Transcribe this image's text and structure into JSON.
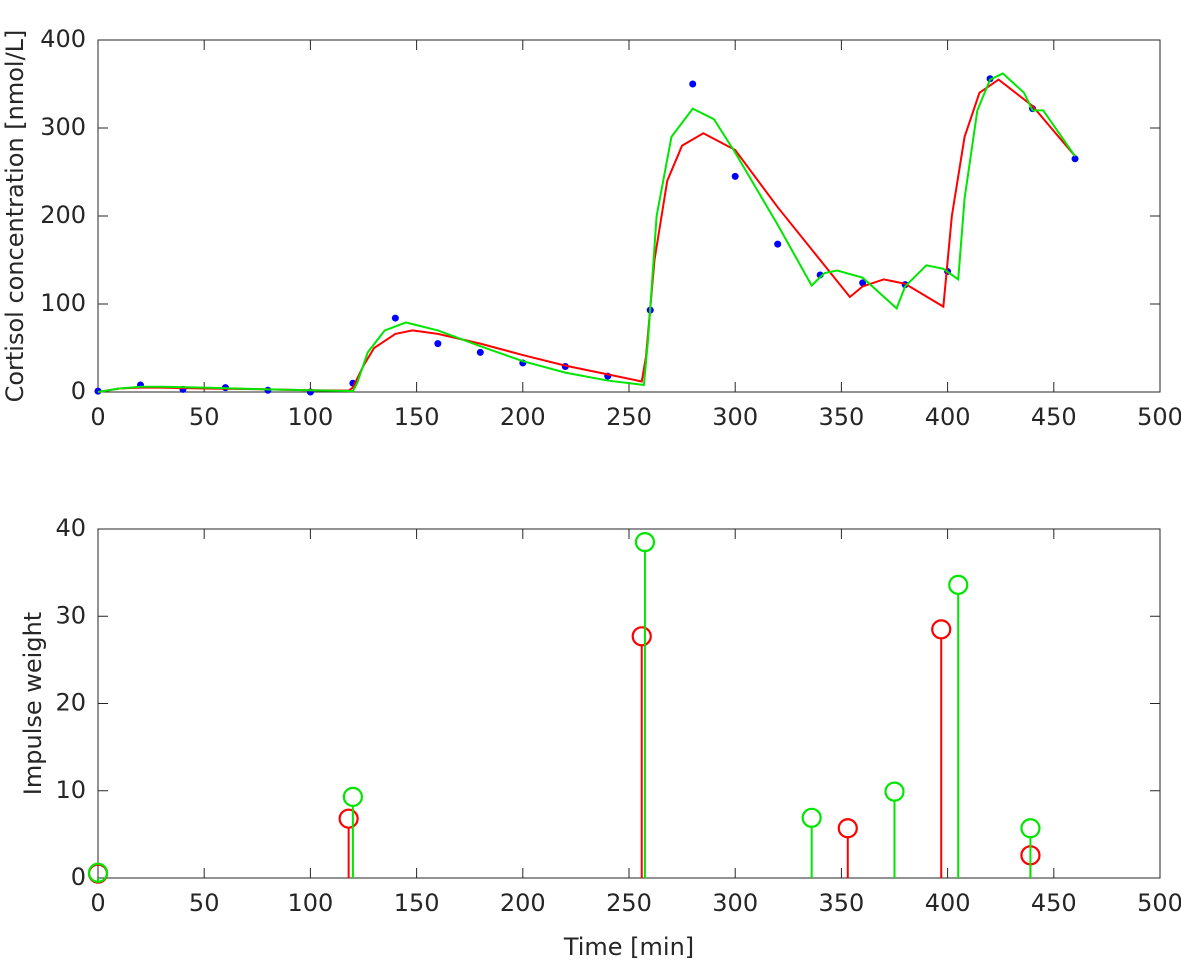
{
  "chart_data": [
    {
      "type": "line",
      "ylabel": "Cortisol concentration [nmol/L]",
      "xlim": [
        0,
        500
      ],
      "xticks": [
        0,
        50,
        100,
        150,
        200,
        250,
        300,
        350,
        400,
        450,
        500
      ],
      "ylim": [
        0,
        400
      ],
      "yticks": [
        0,
        100,
        200,
        300,
        400
      ],
      "box": true,
      "series": [
        {
          "style": "markers",
          "color": "#0000ff",
          "x": [
            0,
            20,
            40,
            60,
            80,
            100,
            120,
            140,
            160,
            180,
            200,
            220,
            240,
            260,
            280,
            300,
            320,
            340,
            360,
            380,
            400,
            420,
            440,
            460
          ],
          "values": [
            1,
            8,
            3,
            5,
            2,
            0,
            10,
            84,
            55,
            45,
            33,
            29,
            18,
            93,
            350,
            245,
            168,
            133,
            124,
            122,
            137,
            356,
            322,
            265
          ]
        },
        {
          "style": "line",
          "color": "#ff0000",
          "x": [
            0,
            10,
            20,
            30,
            50,
            80,
            100,
            118,
            120,
            125,
            130,
            140,
            148,
            160,
            180,
            200,
            220,
            240,
            256,
            258,
            262,
            268,
            275,
            285,
            300,
            320,
            340,
            354,
            360,
            370,
            380,
            398,
            402,
            408,
            415,
            424,
            440,
            460
          ],
          "values": [
            0,
            4,
            5,
            5,
            4,
            3,
            2,
            1.5,
            5,
            30,
            50,
            66,
            70,
            66,
            55,
            42,
            30,
            20,
            12,
            40,
            150,
            240,
            280,
            294,
            275,
            210,
            150,
            108,
            120,
            128,
            123,
            97,
            200,
            290,
            340,
            355,
            325,
            268
          ]
        },
        {
          "style": "line",
          "color": "#00e600",
          "x": [
            0,
            10,
            20,
            30,
            50,
            80,
            100,
            120,
            122,
            127,
            135,
            145,
            160,
            180,
            200,
            220,
            240,
            257,
            259,
            263,
            270,
            280,
            290,
            300,
            320,
            336,
            342,
            348,
            360,
            376,
            380,
            390,
            398,
            405,
            408,
            414,
            420,
            426,
            436,
            440,
            445,
            460
          ],
          "values": [
            0,
            4,
            6,
            6,
            5,
            3,
            2,
            1,
            10,
            45,
            70,
            79,
            70,
            52,
            35,
            22,
            13,
            8,
            60,
            200,
            290,
            322,
            310,
            272,
            190,
            121,
            135,
            138,
            130,
            95,
            120,
            144,
            140,
            128,
            220,
            320,
            355,
            362,
            340,
            320,
            320,
            268
          ]
        }
      ]
    },
    {
      "type": "stem",
      "xlabel": "Time [min]",
      "ylabel": "Impulse weight",
      "xlim": [
        0,
        500
      ],
      "xticks": [
        0,
        50,
        100,
        150,
        200,
        250,
        300,
        350,
        400,
        450,
        500
      ],
      "ylim": [
        0,
        40
      ],
      "yticks": [
        0,
        10,
        20,
        30,
        40
      ],
      "box": true,
      "series": [
        {
          "color": "#ff0000",
          "x": [
            0,
            118,
            256,
            353,
            397,
            439
          ],
          "values": [
            0.5,
            6.8,
            27.7,
            5.7,
            28.5,
            2.6
          ]
        },
        {
          "color": "#00e600",
          "x": [
            0,
            120,
            257.5,
            336,
            375,
            405,
            439
          ],
          "values": [
            0.6,
            9.3,
            38.5,
            6.9,
            9.9,
            33.6,
            5.7
          ]
        }
      ]
    }
  ]
}
